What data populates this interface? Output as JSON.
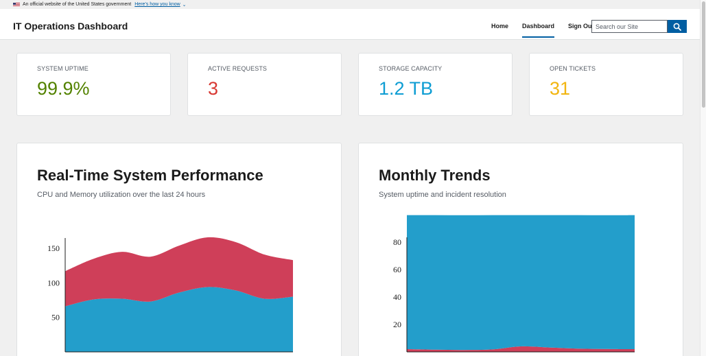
{
  "gov_banner": {
    "text": "An official website of the United States government",
    "link": "Here’s how you know"
  },
  "header": {
    "title": "IT Operations Dashboard",
    "nav": [
      {
        "label": "Home",
        "active": false
      },
      {
        "label": "Dashboard",
        "active": true
      },
      {
        "label": "Sign Out",
        "active": false
      }
    ],
    "search_placeholder": "Search our Site"
  },
  "stats": [
    {
      "label": "System Uptime",
      "value": "99.9%",
      "color": "#538200"
    },
    {
      "label": "Active Requests",
      "value": "3",
      "color": "#d83933"
    },
    {
      "label": "Storage Capacity",
      "value": "1.2 TB",
      "color": "#0e9dd3"
    },
    {
      "label": "Open Tickets",
      "value": "31",
      "color": "#f2b50f"
    }
  ],
  "charts": [
    {
      "title": "Real-Time System Performance",
      "subtitle": "CPU and Memory utilization over the last 24 hours"
    },
    {
      "title": "Monthly Trends",
      "subtitle": "System uptime and incident resolution"
    }
  ],
  "chart_data": [
    {
      "type": "area",
      "stacked": true,
      "x": [
        0,
        1,
        2,
        3,
        4,
        5,
        6,
        7,
        8
      ],
      "ylim": [
        0,
        172
      ],
      "yticks": [
        "50",
        "100",
        "150"
      ],
      "series": [
        {
          "color": "#239ecb",
          "values": [
            66,
            76,
            77,
            73,
            86,
            94,
            89,
            77,
            80
          ]
        },
        {
          "color": "#cf3f59",
          "values": [
            51,
            59,
            68,
            65,
            68,
            72,
            70,
            64,
            53
          ]
        }
      ]
    },
    {
      "type": "area",
      "stacked": true,
      "x": [
        0,
        1,
        2,
        3,
        4,
        5,
        6,
        7,
        8
      ],
      "ylim": [
        0,
        100
      ],
      "yticks": [
        "20",
        "40",
        "60",
        "80"
      ],
      "series": [
        {
          "color": "#cf3f59",
          "values": [
            2,
            1.6,
            1.4,
            1.8,
            4,
            3.2,
            2.4,
            2.1,
            2
          ]
        },
        {
          "color": "#239ecb",
          "values": [
            97.7,
            98.1,
            98.2,
            97.9,
            95.7,
            96.5,
            97.3,
            97.5,
            97.7
          ]
        }
      ]
    }
  ]
}
